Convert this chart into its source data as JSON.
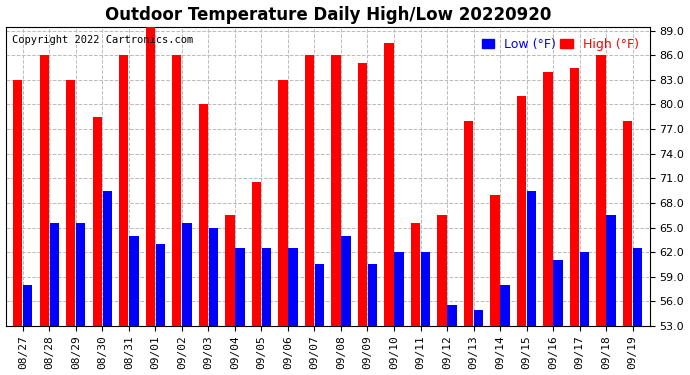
{
  "title": "Outdoor Temperature Daily High/Low 20220920",
  "copyright": "Copyright 2022 Cartronics.com",
  "legend_low": "Low (°F)",
  "legend_high": "High (°F)",
  "dates": [
    "08/27",
    "08/28",
    "08/29",
    "08/30",
    "08/31",
    "09/01",
    "09/02",
    "09/03",
    "09/04",
    "09/05",
    "09/06",
    "09/07",
    "09/08",
    "09/09",
    "09/10",
    "09/11",
    "09/12",
    "09/13",
    "09/14",
    "09/15",
    "09/16",
    "09/17",
    "09/18",
    "09/19"
  ],
  "highs": [
    83.0,
    86.0,
    83.0,
    78.5,
    86.0,
    90.0,
    86.0,
    80.0,
    66.5,
    70.5,
    83.0,
    86.0,
    86.0,
    85.0,
    87.5,
    65.5,
    66.5,
    78.0,
    69.0,
    81.0,
    84.0,
    84.5,
    86.0,
    78.0
  ],
  "lows": [
    58.0,
    65.5,
    65.5,
    69.5,
    64.0,
    63.0,
    65.5,
    65.0,
    62.5,
    62.5,
    62.5,
    60.5,
    64.0,
    60.5,
    62.0,
    62.0,
    55.5,
    55.0,
    58.0,
    69.5,
    61.0,
    62.0,
    66.5,
    62.5
  ],
  "ylim_min": 53.0,
  "ylim_max": 89.5,
  "yticks": [
    53.0,
    56.0,
    59.0,
    62.0,
    65.0,
    68.0,
    71.0,
    74.0,
    77.0,
    80.0,
    83.0,
    86.0,
    89.0
  ],
  "bar_color_high": "#ff0000",
  "bar_color_low": "#0000ff",
  "bg_color": "#ffffff",
  "grid_color": "#bbbbbb",
  "title_fontsize": 12,
  "tick_fontsize": 8,
  "legend_fontsize": 9,
  "copyright_fontsize": 7.5
}
